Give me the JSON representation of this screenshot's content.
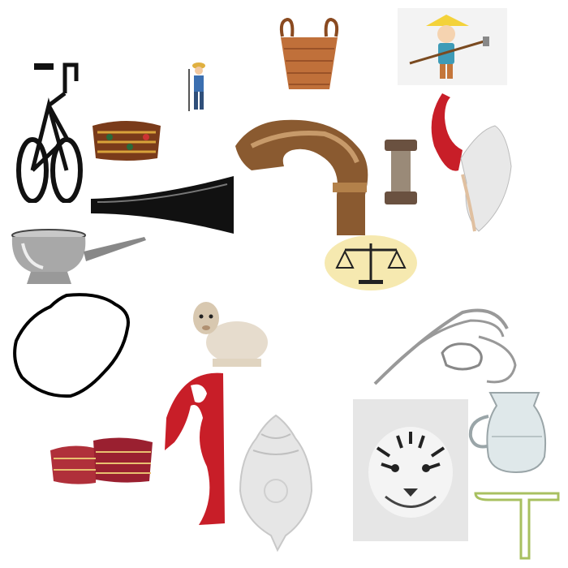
{
  "collage": {
    "items": [
      {
        "icon": "bicycle-icon"
      },
      {
        "icon": "fez-cap-icon"
      },
      {
        "icon": "farmer-with-hoe-icon"
      },
      {
        "icon": "woven-basket-icon"
      },
      {
        "icon": "boy-with-hoe-icon"
      },
      {
        "icon": "walking-cane-handle-icon"
      },
      {
        "icon": "horn-icon"
      },
      {
        "icon": "spool-icon"
      },
      {
        "icon": "red-sickle-icon"
      },
      {
        "icon": "oil-lamp-icon"
      },
      {
        "icon": "balance-scale-icon"
      },
      {
        "icon": "mango-outline-icon"
      },
      {
        "icon": "sheep-icon"
      },
      {
        "icon": "mother-and-child-icon"
      },
      {
        "icon": "red-profile-icon"
      },
      {
        "icon": "two-fez-caps-icon"
      },
      {
        "icon": "conch-shell-icon"
      },
      {
        "icon": "tiger-icon"
      },
      {
        "icon": "glass-jug-icon"
      },
      {
        "icon": "green-cane-icon"
      }
    ]
  }
}
